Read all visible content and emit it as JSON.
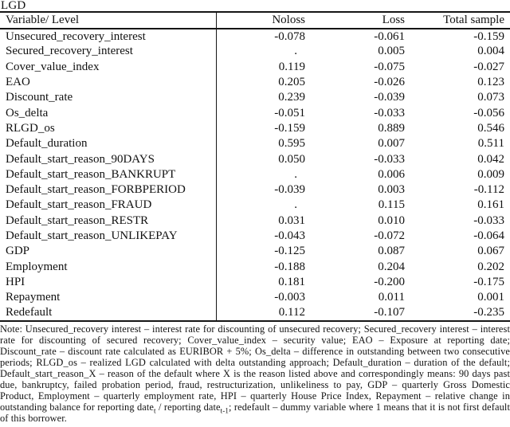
{
  "title": "LGD",
  "table": {
    "columns": [
      "Variable/ Level",
      "Noloss",
      "Loss",
      "Total sample"
    ],
    "rows": [
      {
        "variable": "Unsecured_recovery_interest",
        "noloss": "-0.078",
        "loss": "-0.061",
        "total": "-0.159"
      },
      {
        "variable": "Secured_recovery_interest",
        "noloss": ".",
        "loss": "0.005",
        "total": "0.004"
      },
      {
        "variable": "Cover_value_index",
        "noloss": "0.119",
        "loss": "-0.075",
        "total": "-0.027"
      },
      {
        "variable": "EAO",
        "noloss": "0.205",
        "loss": "-0.026",
        "total": "0.123"
      },
      {
        "variable": "Discount_rate",
        "noloss": "0.239",
        "loss": "-0.039",
        "total": "0.073"
      },
      {
        "variable": "Os_delta",
        "noloss": "-0.051",
        "loss": "-0.033",
        "total": "-0.056"
      },
      {
        "variable": "RLGD_os",
        "noloss": "-0.159",
        "loss": "0.889",
        "total": "0.546"
      },
      {
        "variable": "Default_duration",
        "noloss": "0.595",
        "loss": "0.007",
        "total": "0.511"
      },
      {
        "variable": "Default_start_reason_90DAYS",
        "noloss": "0.050",
        "loss": "-0.033",
        "total": "0.042"
      },
      {
        "variable": "Default_start_reason_BANKRUPT",
        "noloss": ".",
        "loss": "0.006",
        "total": "0.009"
      },
      {
        "variable": "Default_start_reason_FORBPERIOD",
        "noloss": "-0.039",
        "loss": "0.003",
        "total": "-0.112"
      },
      {
        "variable": "Default_start_reason_FRAUD",
        "noloss": ".",
        "loss": "0.115",
        "total": "0.161"
      },
      {
        "variable": "Default_start_reason_RESTR",
        "noloss": "0.031",
        "loss": "0.010",
        "total": "-0.033"
      },
      {
        "variable": "Default_start_reason_UNLIKEPAY",
        "noloss": "-0.043",
        "loss": "-0.072",
        "total": "-0.064"
      },
      {
        "variable": "GDP",
        "noloss": "-0.125",
        "loss": "0.087",
        "total": "0.067"
      },
      {
        "variable": "Employment",
        "noloss": "-0.188",
        "loss": "0.204",
        "total": "0.202"
      },
      {
        "variable": "HPI",
        "noloss": "0.181",
        "loss": "-0.200",
        "total": "-0.175"
      },
      {
        "variable": "Repayment",
        "noloss": "-0.003",
        "loss": "0.011",
        "total": "0.001"
      },
      {
        "variable": "Redefault",
        "noloss": "0.112",
        "loss": "-0.107",
        "total": "-0.235"
      }
    ]
  },
  "note": {
    "before_sub1": "Note: Unsecured_recovery interest – interest rate for discounting of unsecured recovery; Secured_recovery interest – interest rate for discounting of secured recovery; Cover_value_index – security value; EAO – Exposure at reporting date; Discount_rate – discount rate calculated as EURIBOR + 5%; Os_delta – difference in outstanding between two consecutive periods; RLGD_os – realized LGD calculated with delta outstanding approach; Default_duration – duration of the default; Default_start_reason_X – reason of the default where X is the reason listed above and correspondingly means: 90 days past due, bankruptcy, failed probation period, fraud, restructurization, unlikeliness to pay, GDP – quarterly Gross Domestic Product, Employment – quarterly employment rate, HPI – quarterly House Price Index, Repayment – relative change in outstanding balance for reporting date",
    "sub1": "t",
    "between_subs": " / reporting date",
    "sub2": "t-1",
    "after_sub2": "; redefault – dummy variable where 1 means that it is not first default of this borrower."
  }
}
